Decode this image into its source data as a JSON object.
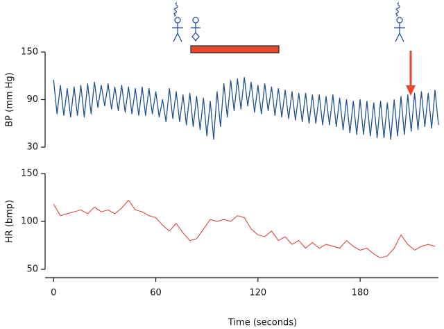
{
  "chart_data": [
    {
      "type": "line",
      "ylabel": "BP (mm Hg)",
      "color": "#1f4f8f",
      "ylim": [
        30,
        150
      ],
      "yticks": [
        30,
        90,
        150
      ],
      "xlim": [
        -5,
        226
      ],
      "x": [
        0,
        2,
        4,
        6,
        8,
        10,
        12,
        14,
        16,
        18,
        20,
        22,
        24,
        26,
        28,
        30,
        32,
        34,
        36,
        38,
        40,
        42,
        44,
        46,
        48,
        50,
        52,
        54,
        56,
        58,
        60,
        62,
        64,
        66,
        68,
        70,
        72,
        74,
        76,
        78,
        80,
        82,
        84,
        86,
        88,
        90,
        92,
        94,
        96,
        98,
        100,
        102,
        104,
        106,
        108,
        110,
        112,
        114,
        116,
        118,
        120,
        122,
        124,
        126,
        128,
        130,
        132,
        134,
        136,
        138,
        140,
        142,
        144,
        146,
        148,
        150,
        152,
        154,
        156,
        158,
        160,
        162,
        164,
        166,
        168,
        170,
        172,
        174,
        176,
        178,
        180,
        182,
        184,
        186,
        188,
        190,
        192,
        194,
        196,
        198,
        200,
        202,
        204,
        206,
        208,
        210,
        212,
        214,
        216,
        218,
        220,
        222,
        224,
        226
      ],
      "values": [
        115,
        72,
        108,
        70,
        104,
        68,
        106,
        70,
        108,
        68,
        110,
        72,
        112,
        80,
        108,
        82,
        110,
        78,
        106,
        76,
        108,
        74,
        106,
        72,
        104,
        70,
        106,
        70,
        104,
        72,
        100,
        68,
        90,
        62,
        104,
        66,
        100,
        62,
        96,
        58,
        98,
        56,
        94,
        52,
        92,
        44,
        88,
        40,
        100,
        56,
        110,
        68,
        114,
        76,
        116,
        78,
        118,
        82,
        112,
        74,
        108,
        72,
        110,
        76,
        106,
        70,
        104,
        68,
        102,
        66,
        100,
        64,
        98,
        62,
        98,
        60,
        96,
        60,
        96,
        58,
        94,
        58,
        96,
        56,
        92,
        52,
        90,
        48,
        88,
        46,
        90,
        46,
        88,
        44,
        86,
        42,
        88,
        42,
        86,
        40,
        90,
        44,
        94,
        46,
        96,
        50,
        98,
        52,
        100,
        56,
        98,
        54,
        102,
        58
      ]
    },
    {
      "type": "line",
      "ylabel": "HR (bmp)",
      "xlabel": "Time (seconds)",
      "color": "#e0342f",
      "ylim": [
        50,
        150
      ],
      "yticks": [
        50,
        100,
        150
      ],
      "xlim": [
        -5,
        226
      ],
      "xticks": [
        0,
        60,
        120,
        180
      ],
      "x": [
        0,
        4,
        8,
        12,
        16,
        20,
        24,
        28,
        32,
        36,
        40,
        44,
        48,
        52,
        56,
        60,
        64,
        68,
        72,
        76,
        80,
        84,
        88,
        92,
        96,
        100,
        104,
        108,
        112,
        116,
        120,
        124,
        128,
        132,
        136,
        140,
        144,
        148,
        152,
        156,
        160,
        164,
        168,
        172,
        176,
        180,
        184,
        188,
        192,
        196,
        200,
        204,
        208,
        212,
        216,
        220,
        224
      ],
      "values": [
        118,
        106,
        108,
        110,
        112,
        108,
        115,
        110,
        112,
        108,
        114,
        122,
        112,
        110,
        106,
        104,
        96,
        90,
        98,
        88,
        80,
        82,
        92,
        102,
        100,
        102,
        100,
        106,
        104,
        92,
        86,
        84,
        90,
        80,
        84,
        76,
        80,
        72,
        78,
        72,
        76,
        74,
        72,
        80,
        74,
        70,
        72,
        66,
        62,
        64,
        72,
        86,
        76,
        70,
        74,
        76,
        74
      ]
    }
  ]
}
